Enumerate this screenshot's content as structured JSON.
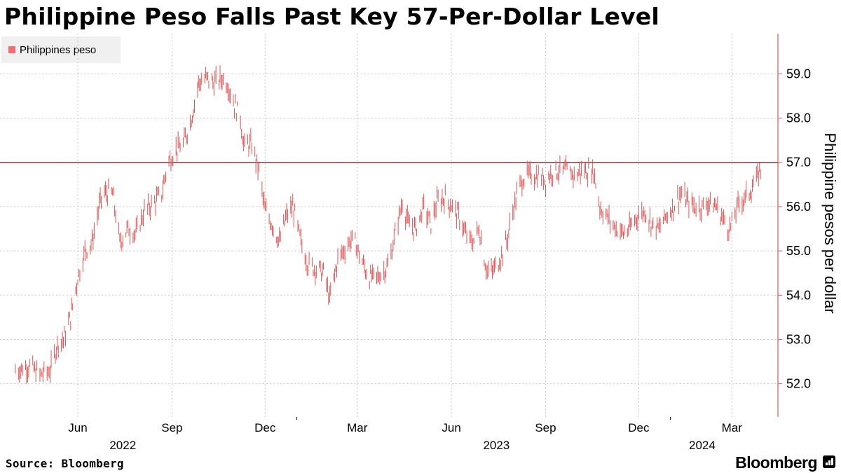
{
  "title": "Philippine Peso Falls Past Key 57-Per-Dollar Level",
  "legend": {
    "label": "Philippines peso",
    "color": "#f07070"
  },
  "source": "Source: Bloomberg",
  "brand": "Bloomberg",
  "colors": {
    "series": "#e05555",
    "axis": "#e05555",
    "reference_line": "#8b1a2b",
    "grid": "#c8c8c8"
  },
  "chart_data": {
    "type": "line",
    "style": "daily high-low bars",
    "series": [
      {
        "name": "Philippines peso",
        "points": [
          [
            "2022-04-01",
            52.3
          ],
          [
            "2022-04-15",
            52.4
          ],
          [
            "2022-04-25",
            52.2
          ],
          [
            "2022-05-05",
            52.3
          ],
          [
            "2022-05-12",
            52.9
          ],
          [
            "2022-05-18",
            53.0
          ],
          [
            "2022-05-25",
            53.5
          ],
          [
            "2022-06-01",
            54.4
          ],
          [
            "2022-06-08",
            55.0
          ],
          [
            "2022-06-15",
            55.2
          ],
          [
            "2022-06-20",
            55.8
          ],
          [
            "2022-06-25",
            56.3
          ],
          [
            "2022-07-05",
            56.3
          ],
          [
            "2022-07-12",
            55.2
          ],
          [
            "2022-07-20",
            55.5
          ],
          [
            "2022-07-28",
            55.4
          ],
          [
            "2022-08-05",
            55.9
          ],
          [
            "2022-08-15",
            56.1
          ],
          [
            "2022-08-22",
            56.3
          ],
          [
            "2022-08-28",
            57.0
          ],
          [
            "2022-09-05",
            57.3
          ],
          [
            "2022-09-12",
            57.4
          ],
          [
            "2022-09-20",
            58.0
          ],
          [
            "2022-09-27",
            58.8
          ],
          [
            "2022-10-05",
            58.9
          ],
          [
            "2022-10-12",
            58.8
          ],
          [
            "2022-10-20",
            58.9
          ],
          [
            "2022-10-25",
            58.8
          ],
          [
            "2022-11-01",
            58.3
          ],
          [
            "2022-11-07",
            58.0
          ],
          [
            "2022-11-10",
            57.4
          ],
          [
            "2022-11-18",
            57.4
          ],
          [
            "2022-11-25",
            56.8
          ],
          [
            "2022-12-01",
            55.9
          ],
          [
            "2022-12-08",
            55.6
          ],
          [
            "2022-12-15",
            55.2
          ],
          [
            "2022-12-22",
            55.8
          ],
          [
            "2022-12-28",
            56.0
          ],
          [
            "2023-01-05",
            55.2
          ],
          [
            "2023-01-12",
            54.7
          ],
          [
            "2023-01-20",
            54.6
          ],
          [
            "2023-01-28",
            54.5
          ],
          [
            "2023-02-02",
            53.9
          ],
          [
            "2023-02-10",
            54.8
          ],
          [
            "2023-02-18",
            55.1
          ],
          [
            "2023-02-25",
            55.3
          ],
          [
            "2023-03-05",
            54.8
          ],
          [
            "2023-03-12",
            54.4
          ],
          [
            "2023-03-20",
            54.4
          ],
          [
            "2023-03-25",
            54.5
          ],
          [
            "2023-04-01",
            54.7
          ],
          [
            "2023-04-08",
            55.5
          ],
          [
            "2023-04-14",
            56.1
          ],
          [
            "2023-04-20",
            55.6
          ],
          [
            "2023-04-27",
            55.5
          ],
          [
            "2023-05-05",
            56.0
          ],
          [
            "2023-05-12",
            55.6
          ],
          [
            "2023-05-18",
            56.1
          ],
          [
            "2023-05-25",
            56.2
          ],
          [
            "2023-06-02",
            56.0
          ],
          [
            "2023-06-10",
            55.7
          ],
          [
            "2023-06-16",
            55.3
          ],
          [
            "2023-06-22",
            55.2
          ],
          [
            "2023-06-28",
            55.5
          ],
          [
            "2023-07-05",
            54.6
          ],
          [
            "2023-07-10",
            54.5
          ],
          [
            "2023-07-18",
            54.8
          ],
          [
            "2023-07-25",
            55.2
          ],
          [
            "2023-08-01",
            56.0
          ],
          [
            "2023-08-07",
            56.5
          ],
          [
            "2023-08-12",
            56.7
          ],
          [
            "2023-08-18",
            56.7
          ],
          [
            "2023-08-25",
            56.7
          ],
          [
            "2023-09-01",
            56.6
          ],
          [
            "2023-09-08",
            56.8
          ],
          [
            "2023-09-15",
            56.8
          ],
          [
            "2023-09-22",
            56.8
          ],
          [
            "2023-09-29",
            56.7
          ],
          [
            "2023-10-06",
            56.8
          ],
          [
            "2023-10-13",
            56.8
          ],
          [
            "2023-10-18",
            56.8
          ],
          [
            "2023-10-24",
            56.0
          ],
          [
            "2023-10-30",
            55.8
          ],
          [
            "2023-11-05",
            55.6
          ],
          [
            "2023-11-10",
            55.5
          ],
          [
            "2023-11-16",
            55.4
          ],
          [
            "2023-11-22",
            55.5
          ],
          [
            "2023-11-30",
            55.8
          ],
          [
            "2023-12-07",
            55.9
          ],
          [
            "2023-12-14",
            55.6
          ],
          [
            "2023-12-21",
            55.5
          ],
          [
            "2023-12-28",
            55.8
          ],
          [
            "2024-01-04",
            56.0
          ],
          [
            "2024-01-11",
            56.3
          ],
          [
            "2024-01-18",
            56.1
          ],
          [
            "2024-01-25",
            56.0
          ],
          [
            "2024-02-01",
            56.0
          ],
          [
            "2024-02-08",
            56.1
          ],
          [
            "2024-02-15",
            56.0
          ],
          [
            "2024-02-22",
            55.7
          ],
          [
            "2024-02-28",
            55.5
          ],
          [
            "2024-03-04",
            55.8
          ],
          [
            "2024-03-08",
            56.1
          ],
          [
            "2024-03-14",
            56.2
          ],
          [
            "2024-03-20",
            56.4
          ],
          [
            "2024-03-25",
            56.6
          ],
          [
            "2024-03-28",
            56.8
          ],
          [
            "2024-04-01",
            57.0
          ]
        ]
      }
    ],
    "reference_line": {
      "y": 57.0
    },
    "x_ticks": [
      {
        "date": "2022-06-01",
        "label": "Jun"
      },
      {
        "date": "2022-09-01",
        "label": "Sep"
      },
      {
        "date": "2022-12-01",
        "label": "Dec"
      },
      {
        "date": "2023-03-01",
        "label": "Mar"
      },
      {
        "date": "2023-06-01",
        "label": "Jun"
      },
      {
        "date": "2023-09-01",
        "label": "Sep"
      },
      {
        "date": "2023-12-01",
        "label": "Dec"
      },
      {
        "date": "2024-03-01",
        "label": "Mar"
      }
    ],
    "year_labels": [
      {
        "date": "2022-07-15",
        "label": "2022"
      },
      {
        "date": "2023-07-15",
        "label": "2023"
      },
      {
        "date": "2024-02-01",
        "label": "2024"
      }
    ],
    "year_boundaries": [
      "2023-01-01",
      "2024-01-01"
    ],
    "y_ticks": [
      52.0,
      53.0,
      54.0,
      55.0,
      56.0,
      57.0,
      58.0,
      59.0
    ],
    "ylabel": "Philippine pesos per dollar",
    "xlim": [
      "2022-03-17",
      "2024-04-15"
    ],
    "ylim": [
      51.25,
      59.75
    ],
    "y_axis_side": "right",
    "grid": true
  }
}
